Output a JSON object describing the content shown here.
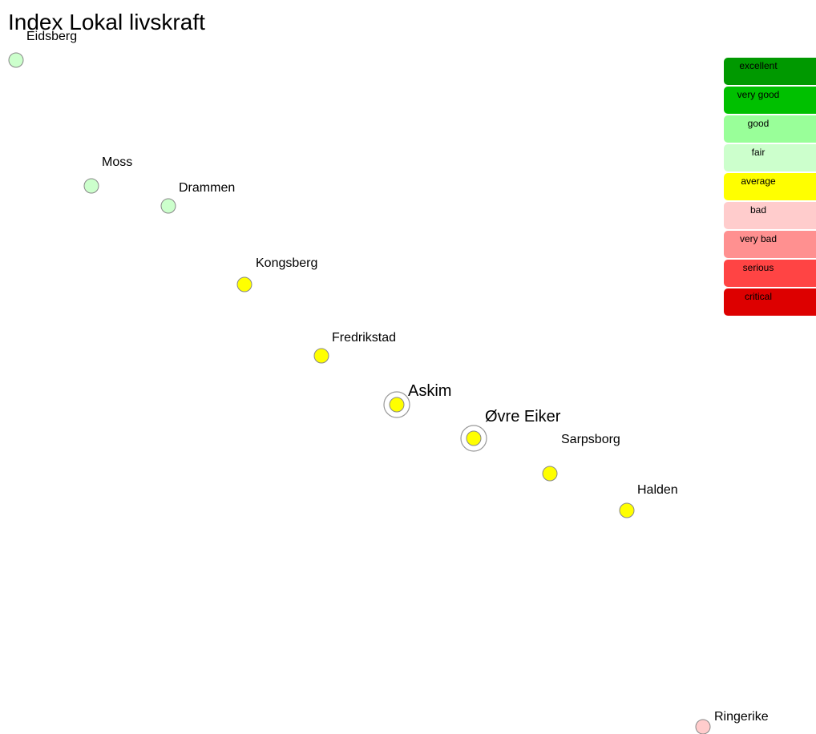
{
  "title": "Index Lokal livskraft",
  "legend": [
    {
      "label": "excellent",
      "color": "#009900"
    },
    {
      "label": "very good",
      "color": "#00c000"
    },
    {
      "label": "good",
      "color": "#99ff99"
    },
    {
      "label": "fair",
      "color": "#ccffcc"
    },
    {
      "label": "average",
      "color": "#ffff00"
    },
    {
      "label": "bad",
      "color": "#ffcccc"
    },
    {
      "label": "very bad",
      "color": "#ff9090"
    },
    {
      "label": "serious",
      "color": "#ff4444"
    },
    {
      "label": "critical",
      "color": "#dd0000"
    }
  ],
  "nodes": [
    {
      "label": "Eidsberg",
      "color": "#ccffcc"
    },
    {
      "label": "Moss",
      "color": "#ccffcc"
    },
    {
      "label": "Drammen",
      "color": "#ccffcc"
    },
    {
      "label": "Kongsberg",
      "color": "#ffff00"
    },
    {
      "label": "Fredrikstad",
      "color": "#ffff00"
    },
    {
      "label": "Askim",
      "color": "#ffff00",
      "highlight": true
    },
    {
      "label": "Øvre Eiker",
      "color": "#ffff00",
      "highlight": true
    },
    {
      "label": "Sarpsborg",
      "color": "#ffff00"
    },
    {
      "label": "Halden",
      "color": "#ffff00"
    },
    {
      "label": "Ringerike",
      "color": "#ffcccc"
    }
  ]
}
